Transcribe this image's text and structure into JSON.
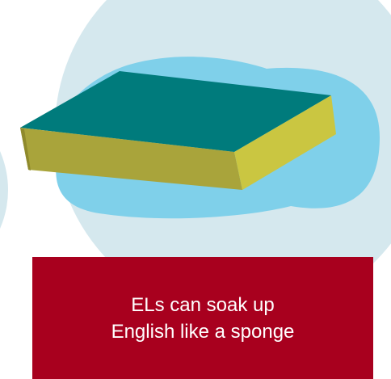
{
  "caption": {
    "lines": [
      "ELs can soak up",
      "English like a sponge"
    ]
  }
}
